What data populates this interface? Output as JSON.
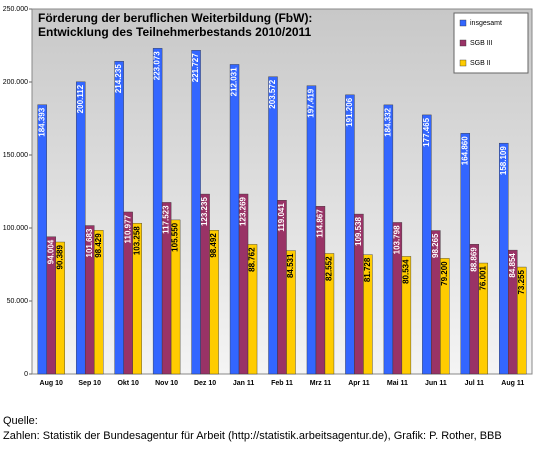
{
  "chart_data": {
    "type": "bar",
    "title": [
      "Förderung der beruflichen Weiterbildung (FbW):",
      "Entwicklung des Teilnehmerbestands 2010/2011"
    ],
    "categories": [
      "Aug 10",
      "Sep 10",
      "Okt 10",
      "Nov 10",
      "Dez 10",
      "Jan 11",
      "Feb 11",
      "Mrz 11",
      "Apr 11",
      "Mai 11",
      "Jun 11",
      "Jul 11",
      "Aug 11"
    ],
    "series": [
      {
        "name": "insgesamt",
        "color": "#3366ff",
        "values": [
          184393,
          200112,
          214235,
          223073,
          221727,
          212031,
          203572,
          197419,
          191206,
          184332,
          177465,
          164860,
          158109
        ],
        "value_labels": [
          "184.393",
          "200.112",
          "214.235",
          "223.073",
          "221.727",
          "212.031",
          "203.572",
          "197.419",
          "191.206",
          "184.332",
          "177.465",
          "164.860",
          "158.109"
        ]
      },
      {
        "name": "SGB III",
        "color": "#993366",
        "values": [
          94004,
          101683,
          110977,
          117523,
          123235,
          123269,
          119041,
          114867,
          109538,
          103798,
          98265,
          88869,
          84854
        ],
        "value_labels": [
          "94.004",
          "101.683",
          "110.977",
          "117.523",
          "123.235",
          "123.269",
          "119.041",
          "114.867",
          "109.538",
          "103.798",
          "98.265",
          "88.869",
          "84.854"
        ]
      },
      {
        "name": "SGB II",
        "color": "#ffcc00",
        "values": [
          90389,
          98429,
          103258,
          105550,
          98492,
          88762,
          84531,
          82552,
          81728,
          80534,
          79200,
          76001,
          73255
        ],
        "value_labels": [
          "90.389",
          "98.429",
          "103.258",
          "105.550",
          "98.492",
          "88.762",
          "84.531",
          "82.552",
          "81.728",
          "80.534",
          "79.200",
          "76.001",
          "73.255"
        ]
      }
    ],
    "ylim": [
      0,
      250000
    ],
    "yticks": [
      0,
      {
        "value": 50000,
        "label": "50.000"
      },
      {
        "value": 100000,
        "label": "100.000"
      },
      {
        "value": 150000,
        "label": "150.000"
      },
      {
        "value": 200000,
        "label": "200.000"
      },
      {
        "value": 250000,
        "label": "250.000"
      }
    ],
    "legend": "upper right"
  },
  "footer": {
    "source_label": "Quelle:",
    "text": "Zahlen: Statistik der Bundesagentur für Arbeit (http://statistik.arbeitsagentur.de), Grafik: P. Rother, BBB"
  }
}
